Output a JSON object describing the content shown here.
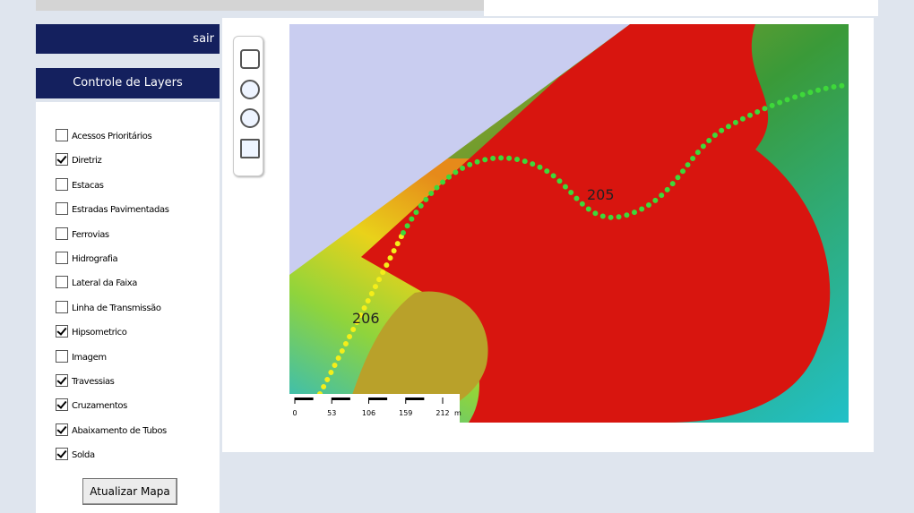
{
  "header": {
    "logout": "sair",
    "panel_title": "Controle de Layers"
  },
  "layers": [
    {
      "label": "Acessos Prioritários",
      "checked": false
    },
    {
      "label": "Diretriz",
      "checked": true
    },
    {
      "label": "Estacas",
      "checked": false
    },
    {
      "label": "Estradas Pavimentadas",
      "checked": false
    },
    {
      "label": "Ferrovias",
      "checked": false
    },
    {
      "label": "Hidrografia",
      "checked": false
    },
    {
      "label": "Lateral da Faixa",
      "checked": false
    },
    {
      "label": "Linha de Transmissão",
      "checked": false
    },
    {
      "label": "Hipsometrico",
      "checked": true
    },
    {
      "label": "Imagem",
      "checked": false
    },
    {
      "label": "Travessias",
      "checked": true
    },
    {
      "label": "Cruzamentos",
      "checked": true
    },
    {
      "label": "Abaixamento de Tubos",
      "checked": true
    },
    {
      "label": "Solda",
      "checked": true
    }
  ],
  "button": "Atualizar Mapa",
  "map": {
    "labels": [
      "205",
      "206"
    ],
    "scale": {
      "ticks": [
        0,
        53,
        106,
        159,
        212
      ],
      "unit": "m"
    }
  }
}
